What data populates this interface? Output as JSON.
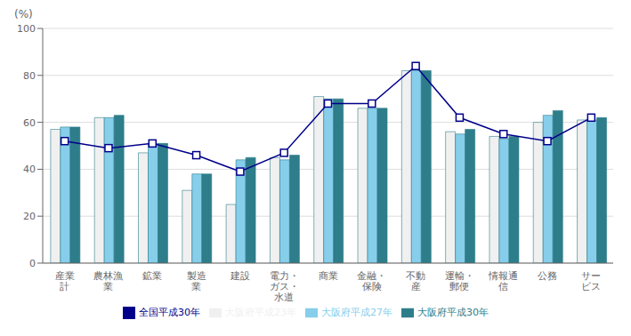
{
  "chart_data": {
    "type": "bar",
    "y_label": "(%)",
    "categories": [
      "産業\n計",
      "農林漁\n業",
      "鉱業",
      "製造\n業",
      "建設",
      "電力・\nガス・\n水道",
      "商業",
      "金融・\n保険",
      "不動\n産",
      "運輸・\n郵便",
      "情報通\n信",
      "公務",
      "サー\nビス"
    ],
    "series": [
      {
        "name": "大阪府平成23年",
        "type": "bar",
        "color": "#f0f0f0",
        "values": [
          57,
          62,
          47,
          31,
          25,
          45,
          71,
          66,
          82,
          56,
          54,
          60,
          61
        ]
      },
      {
        "name": "大阪府平成27年",
        "type": "bar",
        "color": "#87ceeb",
        "values": [
          58,
          62,
          51,
          38,
          44,
          44,
          70,
          66,
          82,
          55,
          53,
          63,
          61
        ]
      },
      {
        "name": "大阪府平成30年",
        "type": "bar",
        "color": "#2e7d8a",
        "values": [
          58,
          63,
          51,
          38,
          45,
          46,
          70,
          66,
          82,
          57,
          54,
          65,
          62
        ]
      },
      {
        "name": "全国平成30年",
        "type": "line",
        "marker": "square",
        "color": "#00008b",
        "values": [
          52,
          49,
          51,
          46,
          39,
          47,
          68,
          68,
          84,
          62,
          55,
          52,
          62
        ]
      }
    ],
    "ylim": [
      0,
      100
    ],
    "yticks": [
      0,
      20,
      40,
      60,
      80,
      100
    ],
    "grid": true,
    "legend": "bottom"
  }
}
